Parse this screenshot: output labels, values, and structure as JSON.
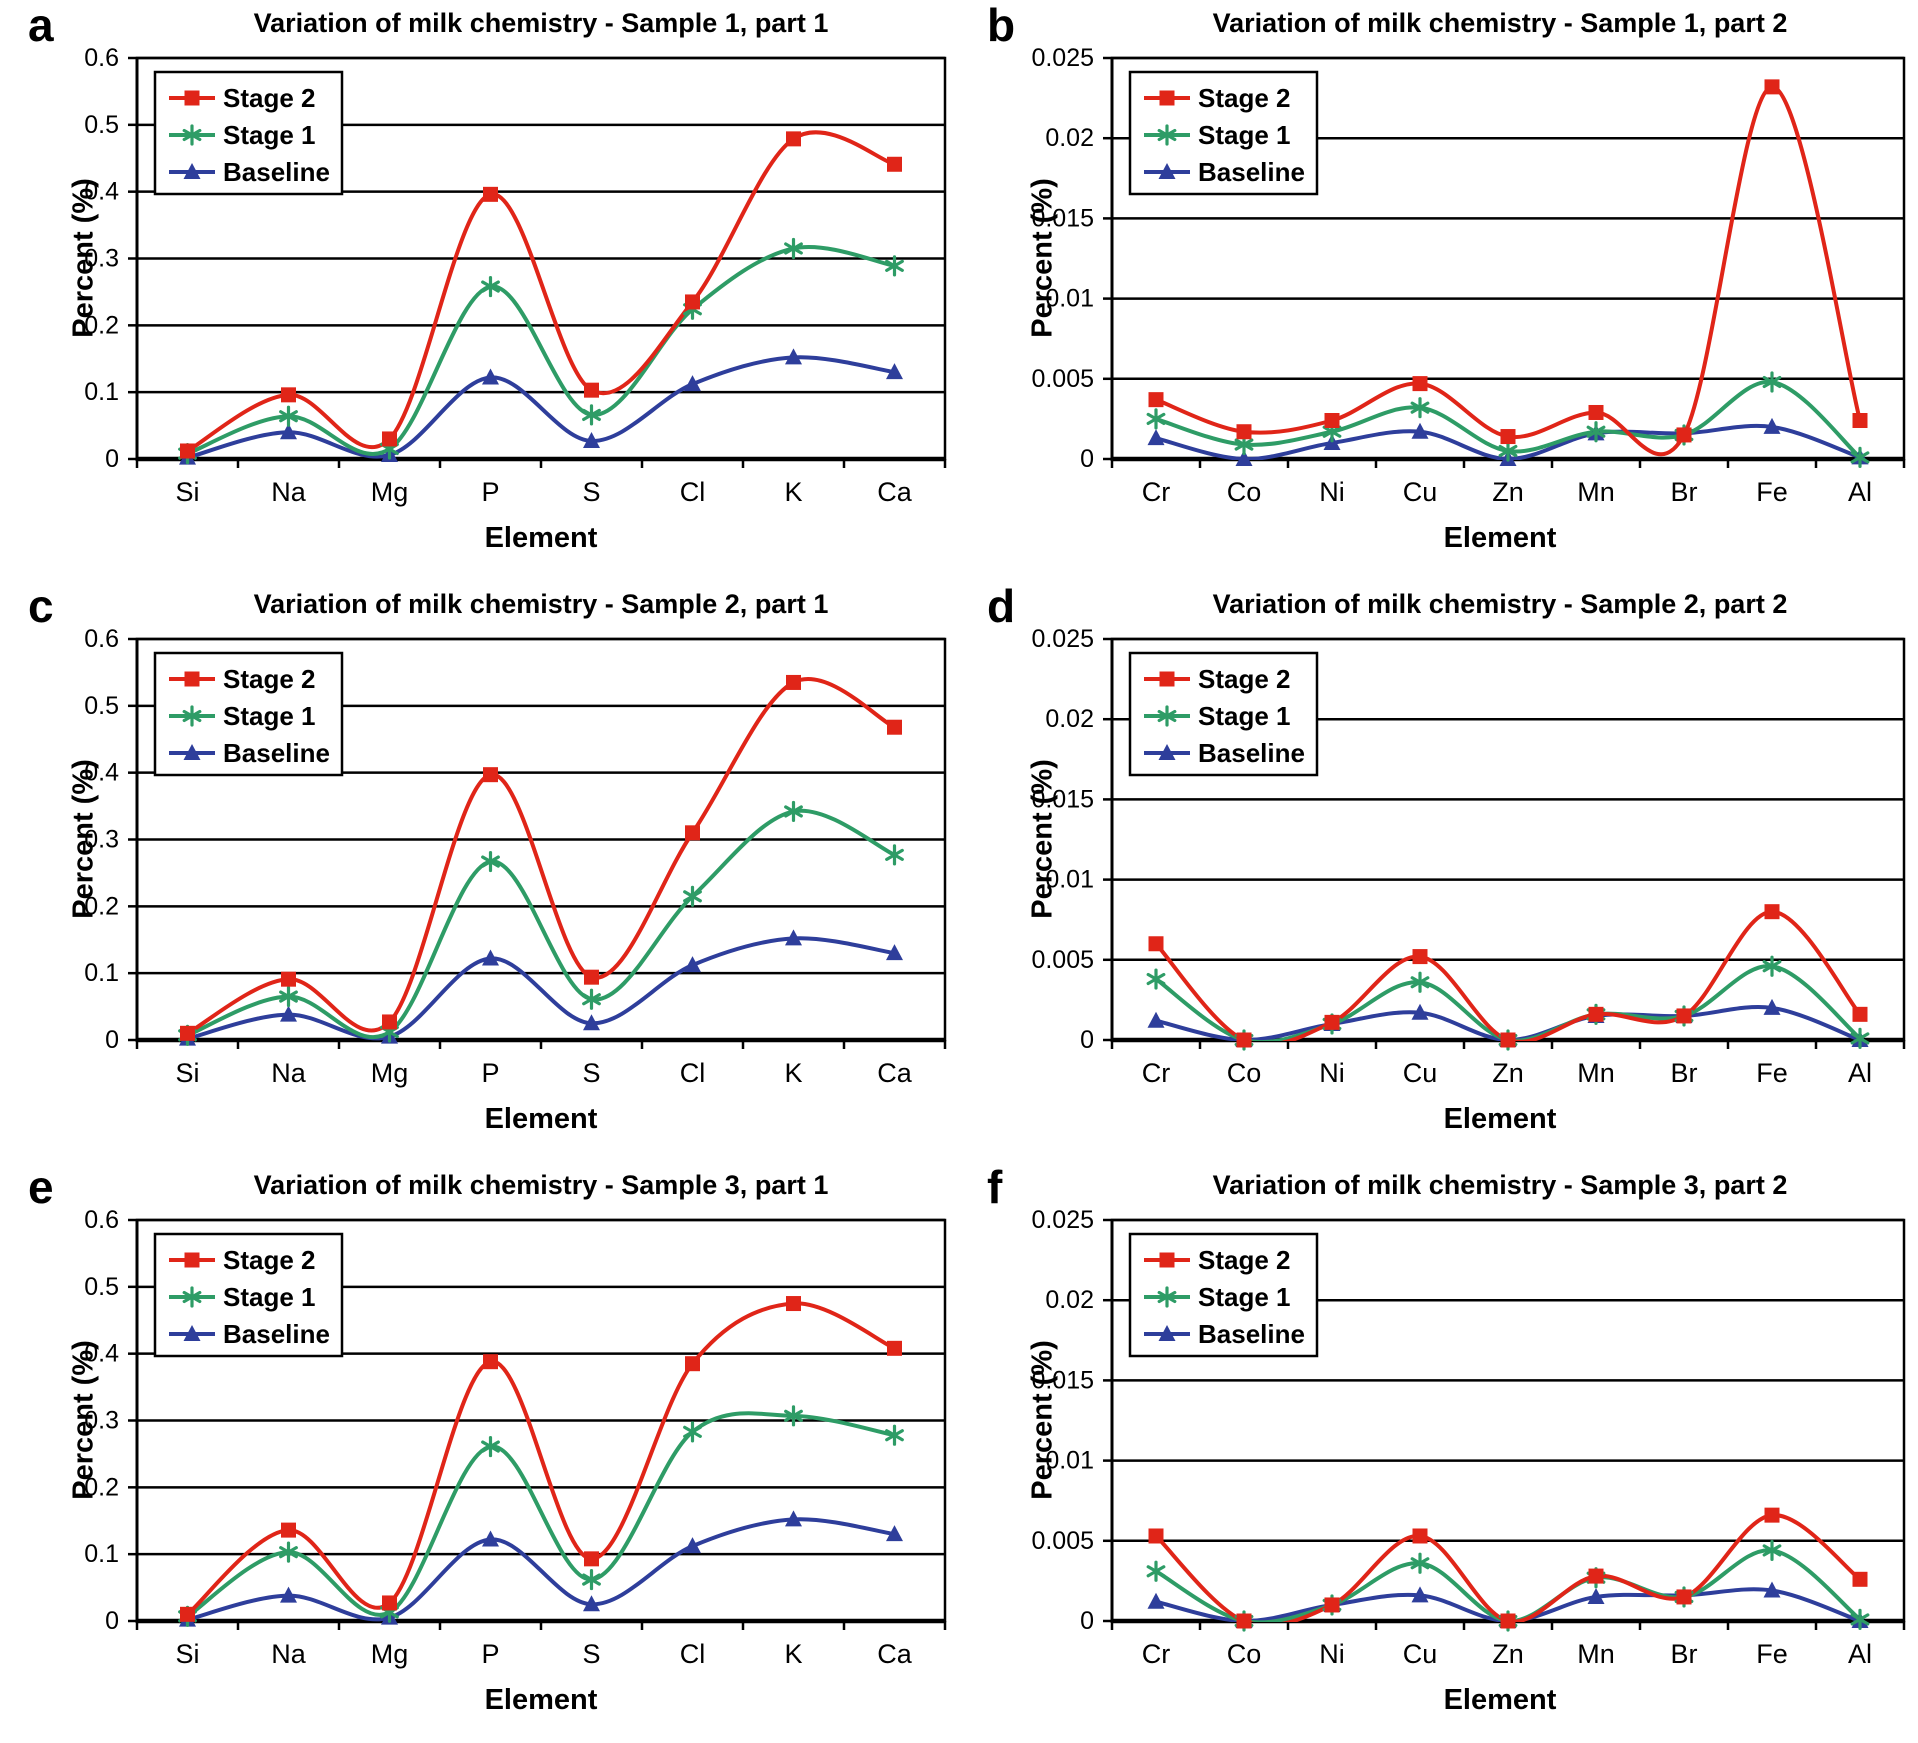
{
  "figure": {
    "background": "#ffffff",
    "xlabel": "Element",
    "ylabel": "Percent (%)",
    "legend": [
      "Stage 2",
      "Stage 1",
      "Baseline"
    ],
    "legend_position": "upper-left",
    "grid": true,
    "series_colors": {
      "Stage 2": "#e02518",
      "Stage 1": "#2e9c66",
      "Baseline": "#2e3e9b"
    },
    "series_markers": {
      "Stage 2": "square",
      "Stage 1": "asterisk",
      "Baseline": "triangle"
    }
  },
  "chart_data": [
    {
      "panel_label": "a",
      "type": "line",
      "title": "Variation of milk chemistry - Sample 1, part 1",
      "xlabel": "Element",
      "ylabel": "Percent (%)",
      "categories": [
        "Si",
        "Na",
        "Mg",
        "P",
        "S",
        "Cl",
        "K",
        "Ca"
      ],
      "ylim": [
        0,
        0.6
      ],
      "yticks": [
        0,
        0.1,
        0.2,
        0.3,
        0.4,
        0.5,
        0.6
      ],
      "series": [
        {
          "name": "Stage 2",
          "marker": "square",
          "color": "#e02518",
          "values": [
            0.012,
            0.096,
            0.03,
            0.396,
            0.103,
            0.235,
            0.479,
            0.441
          ]
        },
        {
          "name": "Stage 1",
          "marker": "asterisk",
          "color": "#2e9c66",
          "values": [
            0.008,
            0.064,
            0.015,
            0.258,
            0.066,
            0.224,
            0.315,
            0.289
          ]
        },
        {
          "name": "Baseline",
          "marker": "triangle",
          "color": "#2e3e9b",
          "values": [
            0.002,
            0.04,
            0.006,
            0.122,
            0.027,
            0.112,
            0.152,
            0.13
          ]
        }
      ]
    },
    {
      "panel_label": "b",
      "type": "line",
      "title": "Variation of milk chemistry - Sample 1, part 2",
      "xlabel": "Element",
      "ylabel": "Percent (%)",
      "categories": [
        "Cr",
        "Co",
        "Ni",
        "Cu",
        "Zn",
        "Mn",
        "Br",
        "Fe",
        "Al"
      ],
      "ylim": [
        0,
        0.025
      ],
      "yticks": [
        0,
        0.005,
        0.01,
        0.015,
        0.02,
        0.025
      ],
      "series": [
        {
          "name": "Stage 2",
          "marker": "square",
          "color": "#e02518",
          "values": [
            0.0037,
            0.0017,
            0.0024,
            0.0047,
            0.0014,
            0.0029,
            0.0015,
            0.0232,
            0.0024
          ]
        },
        {
          "name": "Stage 1",
          "marker": "asterisk",
          "color": "#2e9c66",
          "values": [
            0.0025,
            0.0009,
            0.0017,
            0.0032,
            0.0005,
            0.0017,
            0.0015,
            0.0048,
            0.0001
          ]
        },
        {
          "name": "Baseline",
          "marker": "triangle",
          "color": "#2e3e9b",
          "values": [
            0.0013,
            0,
            0.001,
            0.0017,
            0,
            0.0016,
            0.0016,
            0.002,
            0.0001
          ]
        }
      ]
    },
    {
      "panel_label": "c",
      "type": "line",
      "title": "Variation of milk chemistry - Sample 2, part 1",
      "xlabel": "Element",
      "ylabel": "Percent (%)",
      "categories": [
        "Si",
        "Na",
        "Mg",
        "P",
        "S",
        "Cl",
        "K",
        "Ca"
      ],
      "ylim": [
        0,
        0.6
      ],
      "yticks": [
        0,
        0.1,
        0.2,
        0.3,
        0.4,
        0.5,
        0.6
      ],
      "series": [
        {
          "name": "Stage 2",
          "marker": "square",
          "color": "#e02518",
          "values": [
            0.01,
            0.091,
            0.027,
            0.397,
            0.094,
            0.31,
            0.535,
            0.468
          ]
        },
        {
          "name": "Stage 1",
          "marker": "asterisk",
          "color": "#2e9c66",
          "values": [
            0.007,
            0.065,
            0.012,
            0.267,
            0.061,
            0.215,
            0.342,
            0.277
          ]
        },
        {
          "name": "Baseline",
          "marker": "triangle",
          "color": "#2e3e9b",
          "values": [
            0.002,
            0.038,
            0.005,
            0.122,
            0.025,
            0.112,
            0.152,
            0.13
          ]
        }
      ]
    },
    {
      "panel_label": "d",
      "type": "line",
      "title": "Variation of milk chemistry - Sample 2, part 2",
      "xlabel": "Element",
      "ylabel": "Percent (%)",
      "categories": [
        "Cr",
        "Co",
        "Ni",
        "Cu",
        "Zn",
        "Mn",
        "Br",
        "Fe",
        "Al"
      ],
      "ylim": [
        0,
        0.025
      ],
      "yticks": [
        0,
        0.005,
        0.01,
        0.015,
        0.02,
        0.025
      ],
      "series": [
        {
          "name": "Stage 2",
          "marker": "square",
          "color": "#e02518",
          "values": [
            0.006,
            0,
            0.0011,
            0.0052,
            0,
            0.0016,
            0.0015,
            0.008,
            0.0016
          ]
        },
        {
          "name": "Stage 1",
          "marker": "asterisk",
          "color": "#2e9c66",
          "values": [
            0.0038,
            0,
            0.001,
            0.0036,
            0,
            0.0016,
            0.0015,
            0.0046,
            0.0001
          ]
        },
        {
          "name": "Baseline",
          "marker": "triangle",
          "color": "#2e3e9b",
          "values": [
            0.0012,
            0,
            0.001,
            0.0017,
            0,
            0.0015,
            0.0015,
            0.002,
            0
          ]
        }
      ]
    },
    {
      "panel_label": "e",
      "type": "line",
      "title": "Variation of milk chemistry - Sample 3, part 1",
      "xlabel": "Element",
      "ylabel": "Percent (%)",
      "categories": [
        "Si",
        "Na",
        "Mg",
        "P",
        "S",
        "Cl",
        "K",
        "Ca"
      ],
      "ylim": [
        0,
        0.6
      ],
      "yticks": [
        0,
        0.1,
        0.2,
        0.3,
        0.4,
        0.5,
        0.6
      ],
      "series": [
        {
          "name": "Stage 2",
          "marker": "square",
          "color": "#e02518",
          "values": [
            0.01,
            0.136,
            0.027,
            0.388,
            0.093,
            0.385,
            0.475,
            0.408
          ]
        },
        {
          "name": "Stage 1",
          "marker": "asterisk",
          "color": "#2e9c66",
          "values": [
            0.007,
            0.103,
            0.013,
            0.261,
            0.062,
            0.283,
            0.307,
            0.278
          ]
        },
        {
          "name": "Baseline",
          "marker": "triangle",
          "color": "#2e3e9b",
          "values": [
            0.002,
            0.038,
            0.005,
            0.122,
            0.025,
            0.112,
            0.152,
            0.13
          ]
        }
      ]
    },
    {
      "panel_label": "f",
      "type": "line",
      "title": "Variation of milk chemistry - Sample 3, part 2",
      "xlabel": "Element",
      "ylabel": "Percent (%)",
      "categories": [
        "Cr",
        "Co",
        "Ni",
        "Cu",
        "Zn",
        "Mn",
        "Br",
        "Fe",
        "Al"
      ],
      "ylim": [
        0,
        0.025
      ],
      "yticks": [
        0,
        0.005,
        0.01,
        0.015,
        0.02,
        0.025
      ],
      "series": [
        {
          "name": "Stage 2",
          "marker": "square",
          "color": "#e02518",
          "values": [
            0.0053,
            0,
            0.001,
            0.0053,
            0,
            0.0028,
            0.0015,
            0.0066,
            0.0026
          ]
        },
        {
          "name": "Stage 1",
          "marker": "asterisk",
          "color": "#2e9c66",
          "values": [
            0.0031,
            0,
            0.001,
            0.0036,
            0,
            0.0027,
            0.0015,
            0.0044,
            0.0001
          ]
        },
        {
          "name": "Baseline",
          "marker": "triangle",
          "color": "#2e3e9b",
          "values": [
            0.0012,
            0,
            0.001,
            0.0016,
            0,
            0.0015,
            0.0016,
            0.0019,
            0
          ]
        }
      ]
    }
  ]
}
